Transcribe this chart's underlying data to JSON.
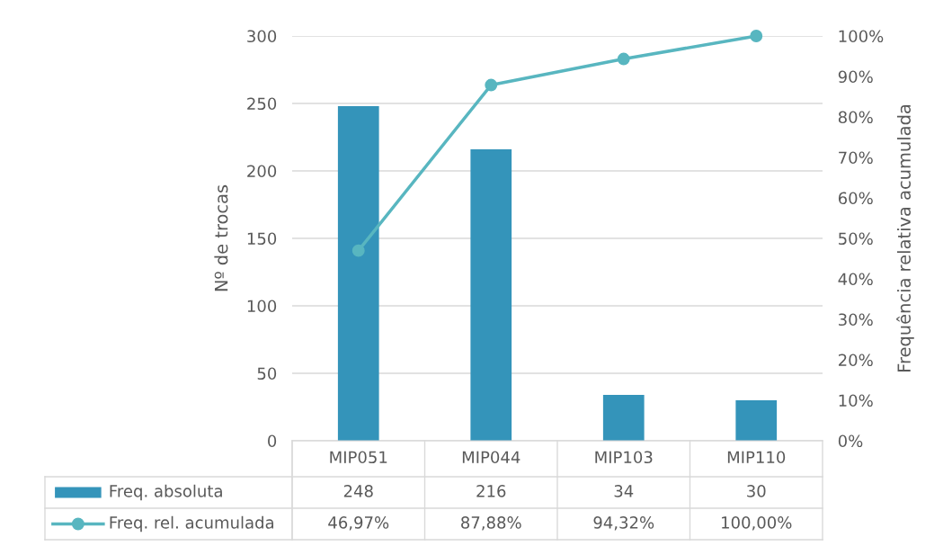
{
  "chart_data": {
    "type": "bar",
    "categories": [
      "MIP051",
      "MIP044",
      "MIP103",
      "MIP110"
    ],
    "series": [
      {
        "name": "Freq. absoluta",
        "color": "#3494ba",
        "values": [
          248,
          216,
          34,
          30
        ],
        "value_labels": [
          "248",
          "216",
          "34",
          "30"
        ]
      },
      {
        "name": "Freq. rel. acumulada",
        "type": "line",
        "axis": "y2",
        "color": "#58b6c0",
        "values": [
          46.97,
          87.88,
          94.32,
          100
        ],
        "value_labels": [
          "46,97%",
          "87,88%",
          "94,32%",
          "100,00%"
        ]
      }
    ],
    "ylabel": "Nº de trocas",
    "y2label": "Frequência relativa acumulada",
    "ylim": [
      0,
      300
    ],
    "yticks": [
      0,
      50,
      100,
      150,
      200,
      250,
      300
    ],
    "y2lim": [
      0,
      100
    ],
    "y2ticks": [
      {
        "value": 0,
        "label": "0%"
      },
      {
        "value": 10,
        "label": "10%"
      },
      {
        "value": 20,
        "label": "20%"
      },
      {
        "value": 30,
        "label": "30%"
      },
      {
        "value": 40,
        "label": "40%"
      },
      {
        "value": 50,
        "label": "50%"
      },
      {
        "value": 60,
        "label": "60%"
      },
      {
        "value": 70,
        "label": "70%"
      },
      {
        "value": 80,
        "label": "80%"
      },
      {
        "value": 90,
        "label": "90%"
      },
      {
        "value": 100,
        "label": "100%"
      }
    ],
    "grid": "y",
    "legend": "bottom",
    "marker": "circle",
    "line_style": "solid"
  }
}
